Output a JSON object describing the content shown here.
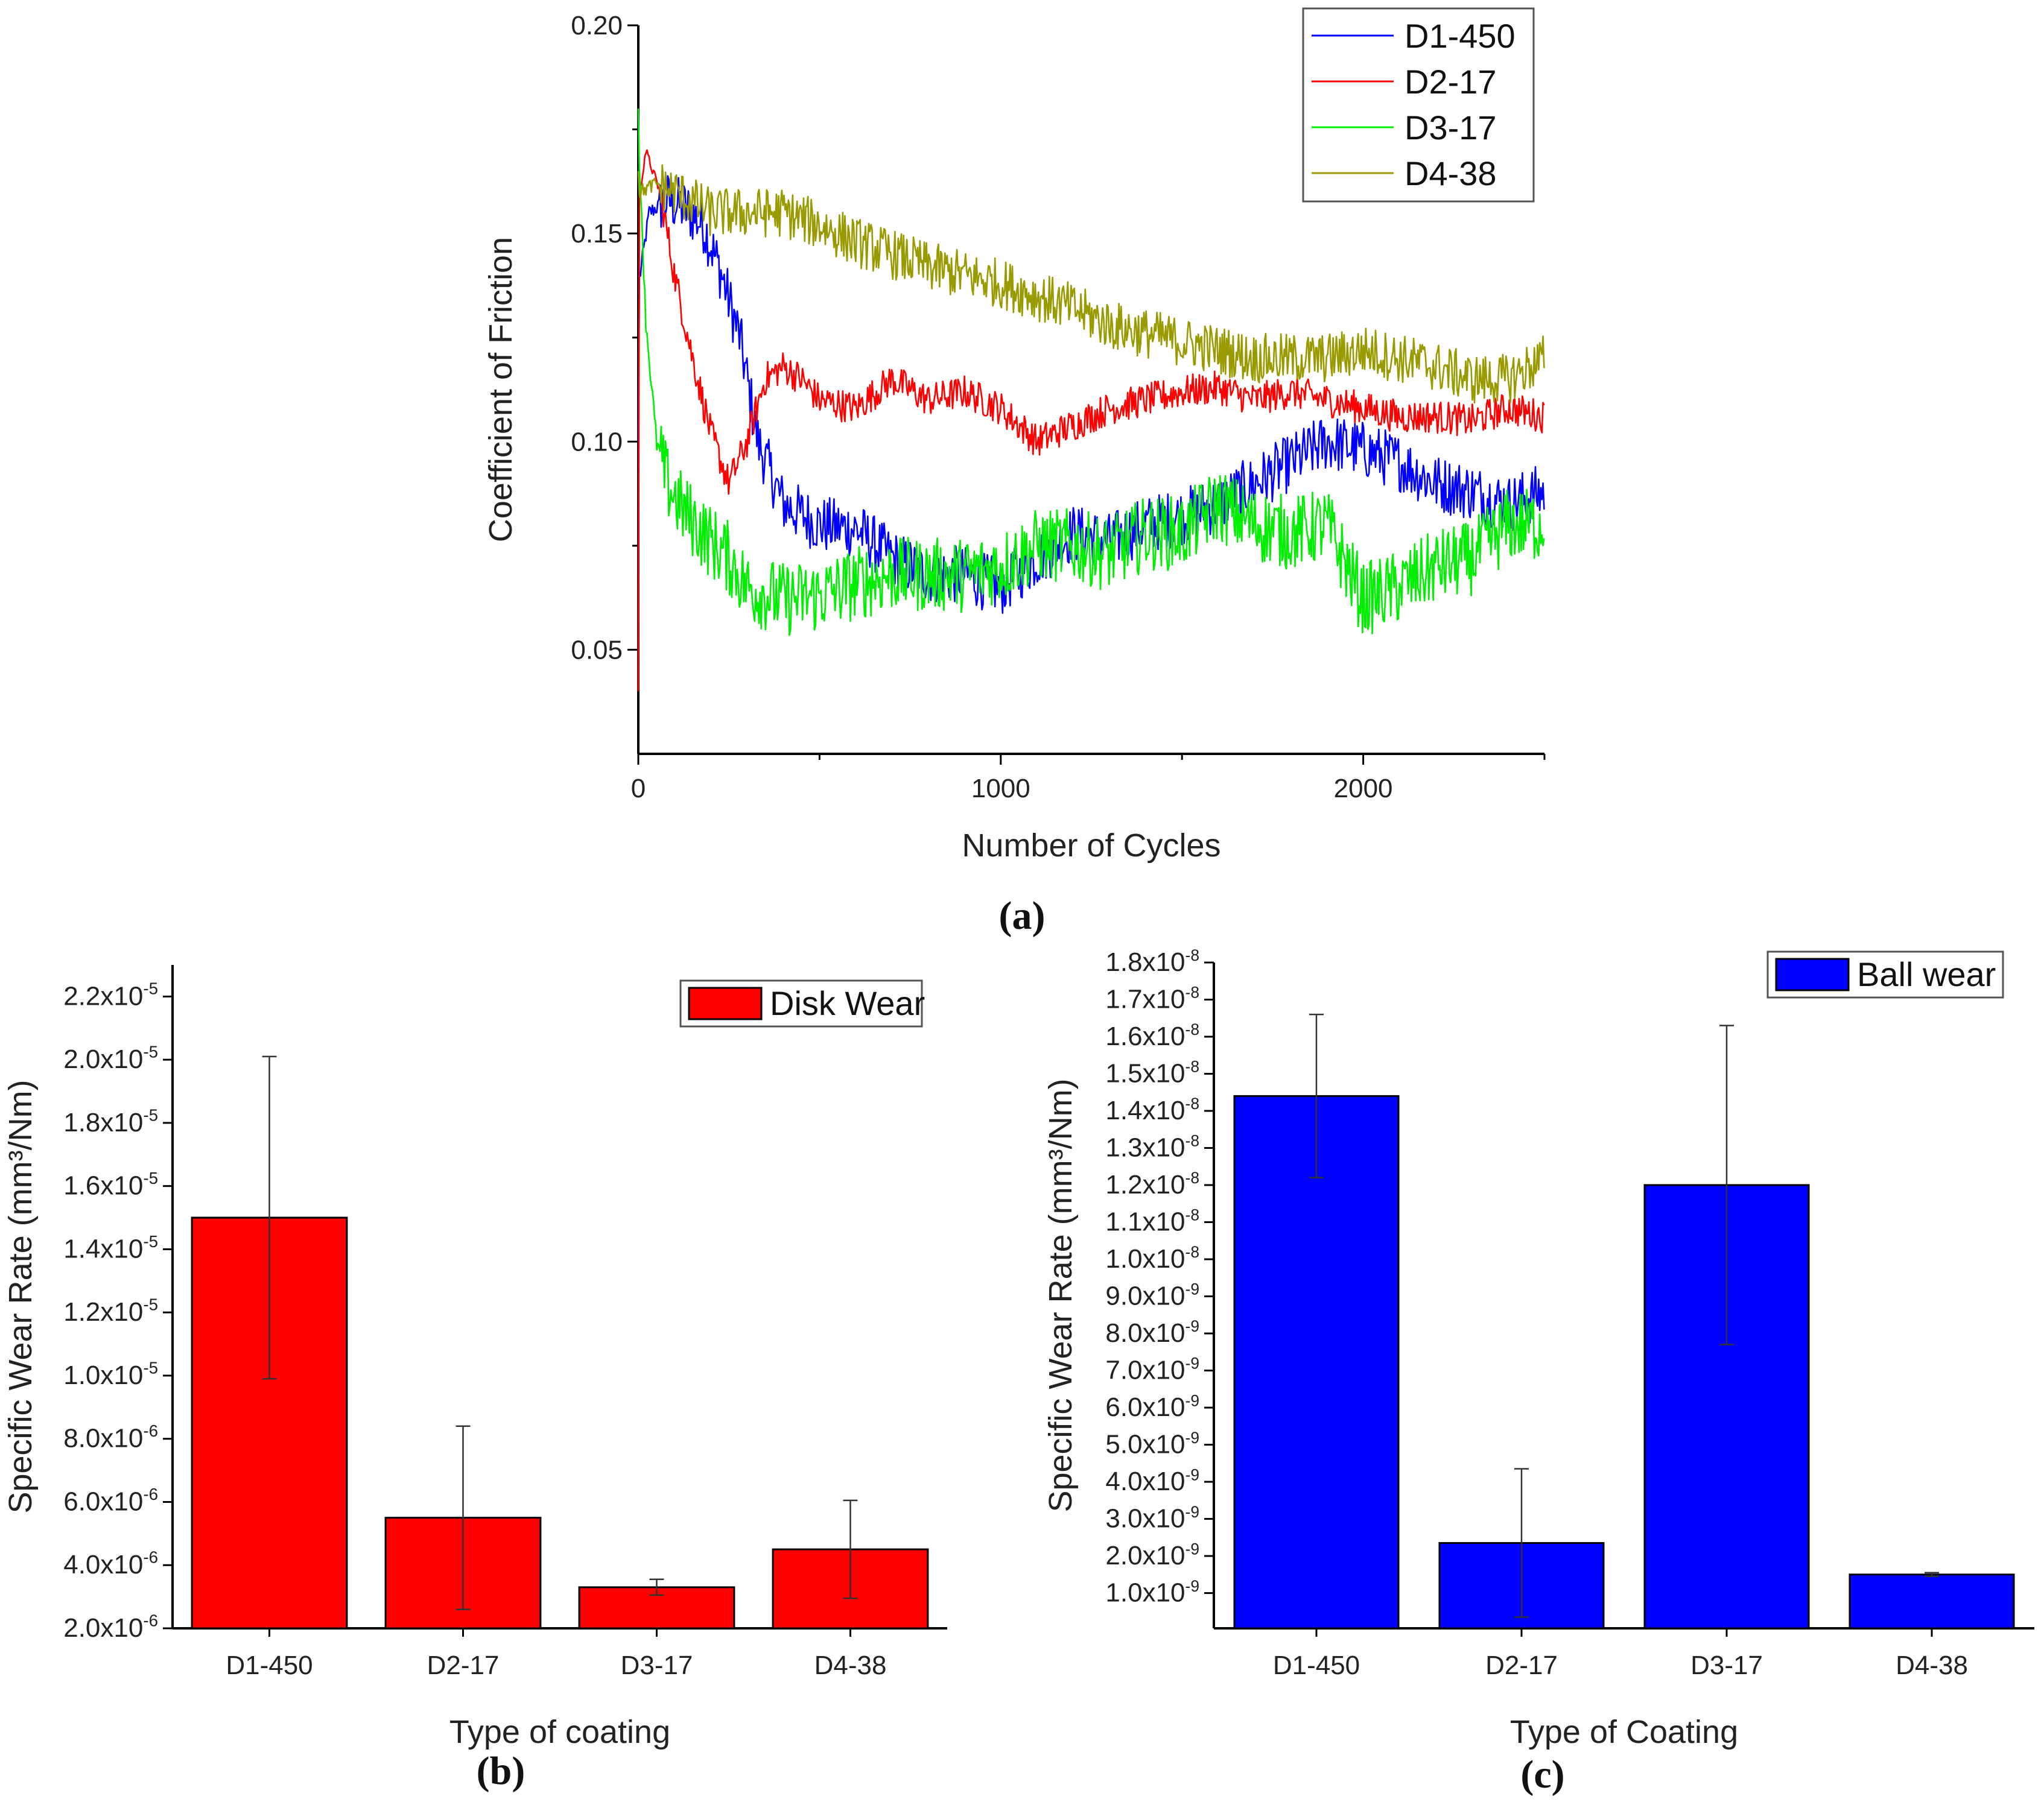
{
  "panels": {
    "a": "(a)",
    "b": "(b)",
    "c": "(c)"
  },
  "chart_data": [
    {
      "id": "a",
      "type": "line",
      "title": "",
      "xlabel": "Number of Cycles",
      "ylabel": "Coefficient of Friction",
      "xlim": [
        0,
        2500
      ],
      "ylim": [
        0.025,
        0.2
      ],
      "xticks": [
        0,
        1000,
        2000
      ],
      "yticks": [
        0.05,
        0.1,
        0.15,
        0.2
      ],
      "ytick_labels": [
        "0.05",
        "0.10",
        "0.15",
        "0.20"
      ],
      "legend_position": "top-right",
      "series": [
        {
          "name": "D1-450",
          "color": "#0000ff",
          "start": 0.1,
          "noise": 0.007,
          "x": [
            5,
            30,
            80,
            130,
            180,
            230,
            280,
            330,
            400,
            500,
            600,
            700,
            800,
            900,
            1000,
            1100,
            1200,
            1300,
            1400,
            1500,
            1600,
            1700,
            1800,
            1900,
            2000,
            2100,
            2200,
            2300,
            2400,
            2500
          ],
          "y": [
            0.14,
            0.155,
            0.158,
            0.156,
            0.152,
            0.14,
            0.125,
            0.1,
            0.085,
            0.08,
            0.079,
            0.072,
            0.068,
            0.068,
            0.065,
            0.072,
            0.078,
            0.076,
            0.08,
            0.082,
            0.085,
            0.09,
            0.095,
            0.1,
            0.098,
            0.095,
            0.09,
            0.088,
            0.085,
            0.088
          ]
        },
        {
          "name": "D2-17",
          "color": "#ff0000",
          "start": 0.04,
          "noise": 0.004,
          "x": [
            5,
            20,
            60,
            100,
            150,
            200,
            250,
            300,
            350,
            400,
            450,
            500,
            600,
            700,
            800,
            900,
            1000,
            1100,
            1200,
            1300,
            1400,
            1500,
            1600,
            1700,
            1800,
            1900,
            2000,
            2100,
            2200,
            2300,
            2400,
            2500
          ],
          "y": [
            0.16,
            0.17,
            0.16,
            0.14,
            0.12,
            0.102,
            0.09,
            0.1,
            0.115,
            0.118,
            0.115,
            0.11,
            0.108,
            0.115,
            0.11,
            0.112,
            0.108,
            0.1,
            0.104,
            0.108,
            0.11,
            0.112,
            0.113,
            0.11,
            0.112,
            0.11,
            0.108,
            0.106,
            0.106,
            0.105,
            0.108,
            0.106
          ]
        },
        {
          "name": "D3-17",
          "color": "#00ee00",
          "start": 0.18,
          "noise": 0.009,
          "x": [
            5,
            20,
            50,
            80,
            120,
            160,
            200,
            250,
            300,
            400,
            500,
            600,
            700,
            800,
            900,
            1000,
            1100,
            1200,
            1300,
            1400,
            1500,
            1600,
            1700,
            1800,
            1900,
            2000,
            2100,
            2200,
            2300,
            2400,
            2500
          ],
          "y": [
            0.165,
            0.13,
            0.1,
            0.09,
            0.084,
            0.08,
            0.076,
            0.072,
            0.065,
            0.062,
            0.063,
            0.066,
            0.068,
            0.068,
            0.068,
            0.07,
            0.075,
            0.075,
            0.073,
            0.078,
            0.078,
            0.085,
            0.08,
            0.078,
            0.08,
            0.062,
            0.065,
            0.07,
            0.072,
            0.08,
            0.08
          ]
        },
        {
          "name": "D4-38",
          "color": "#999900",
          "start": 0.165,
          "noise": 0.006,
          "x": [
            5,
            50,
            100,
            200,
            300,
            400,
            500,
            600,
            700,
            800,
            900,
            1000,
            1100,
            1200,
            1300,
            1400,
            1500,
            1600,
            1700,
            1800,
            1900,
            2000,
            2100,
            2200,
            2300,
            2400,
            2500
          ],
          "y": [
            0.16,
            0.162,
            0.16,
            0.155,
            0.155,
            0.155,
            0.152,
            0.148,
            0.145,
            0.142,
            0.14,
            0.138,
            0.135,
            0.132,
            0.128,
            0.126,
            0.124,
            0.122,
            0.12,
            0.12,
            0.12,
            0.122,
            0.12,
            0.118,
            0.115,
            0.115,
            0.12
          ]
        }
      ]
    },
    {
      "id": "b",
      "type": "bar",
      "title": "",
      "xlabel": "Type of coating",
      "ylabel": "Specific Wear Rate (mm³/Nm)",
      "categories": [
        "D1-450",
        "D2-17",
        "D3-17",
        "D4-38"
      ],
      "values": [
        1.5e-05,
        5.5e-06,
        3.3e-06,
        4.5e-06
      ],
      "errors": [
        5.1e-06,
        2.9e-06,
        2.5e-07,
        1.55e-06
      ],
      "ylim": [
        2e-06,
        2.3e-05
      ],
      "yticks": [
        2e-06,
        4e-06,
        6e-06,
        8e-06,
        1e-05,
        1.2e-05,
        1.4e-05,
        1.6e-05,
        1.8e-05,
        2e-05,
        2.2e-05
      ],
      "ytick_mantissas": [
        "2.0x10",
        "4.0x10",
        "6.0x10",
        "8.0x10",
        "1.0x10",
        "1.2x10",
        "1.4x10",
        "1.6x10",
        "1.8x10",
        "2.0x10",
        "2.2x10"
      ],
      "ytick_exponents": [
        "-6",
        "-6",
        "-6",
        "-6",
        "-5",
        "-5",
        "-5",
        "-5",
        "-5",
        "-5",
        "-5"
      ],
      "bar_color": "#ff0000",
      "legend": "Disk Wear",
      "legend_position": "top-right"
    },
    {
      "id": "c",
      "type": "bar",
      "title": "",
      "xlabel": "Type of Coating",
      "ylabel": "Specific Wear Rate (mm³/Nm)",
      "categories": [
        "D1-450",
        "D2-17",
        "D3-17",
        "D4-38"
      ],
      "values": [
        1.44e-08,
        2.35e-09,
        1.2e-08,
        1.5e-09
      ],
      "errors": [
        2.2e-09,
        2e-09,
        4.3e-09,
        5e-11
      ],
      "ylim": [
        5e-11,
        1.8e-08
      ],
      "yticks": [
        1e-09,
        2e-09,
        3e-09,
        4e-09,
        5e-09,
        6e-09,
        7e-09,
        8e-09,
        9e-09,
        1e-08,
        1.1e-08,
        1.2e-08,
        1.3e-08,
        1.4e-08,
        1.5e-08,
        1.6e-08,
        1.7e-08,
        1.8e-08
      ],
      "ytick_mantissas": [
        "1.0x10",
        "2.0x10",
        "3.0x10",
        "4.0x10",
        "5.0x10",
        "6.0x10",
        "7.0x10",
        "8.0x10",
        "9.0x10",
        "1.0x10",
        "1.1x10",
        "1.2x10",
        "1.3x10",
        "1.4x10",
        "1.5x10",
        "1.6x10",
        "1.7x10",
        "1.8x10"
      ],
      "ytick_exponents": [
        "-9",
        "-9",
        "-9",
        "-9",
        "-9",
        "-9",
        "-9",
        "-9",
        "-9",
        "-8",
        "-8",
        "-8",
        "-8",
        "-8",
        "-8",
        "-8",
        "-8",
        "-8"
      ],
      "bar_color": "#0000ff",
      "legend": "Ball wear",
      "legend_position": "top-right"
    }
  ]
}
